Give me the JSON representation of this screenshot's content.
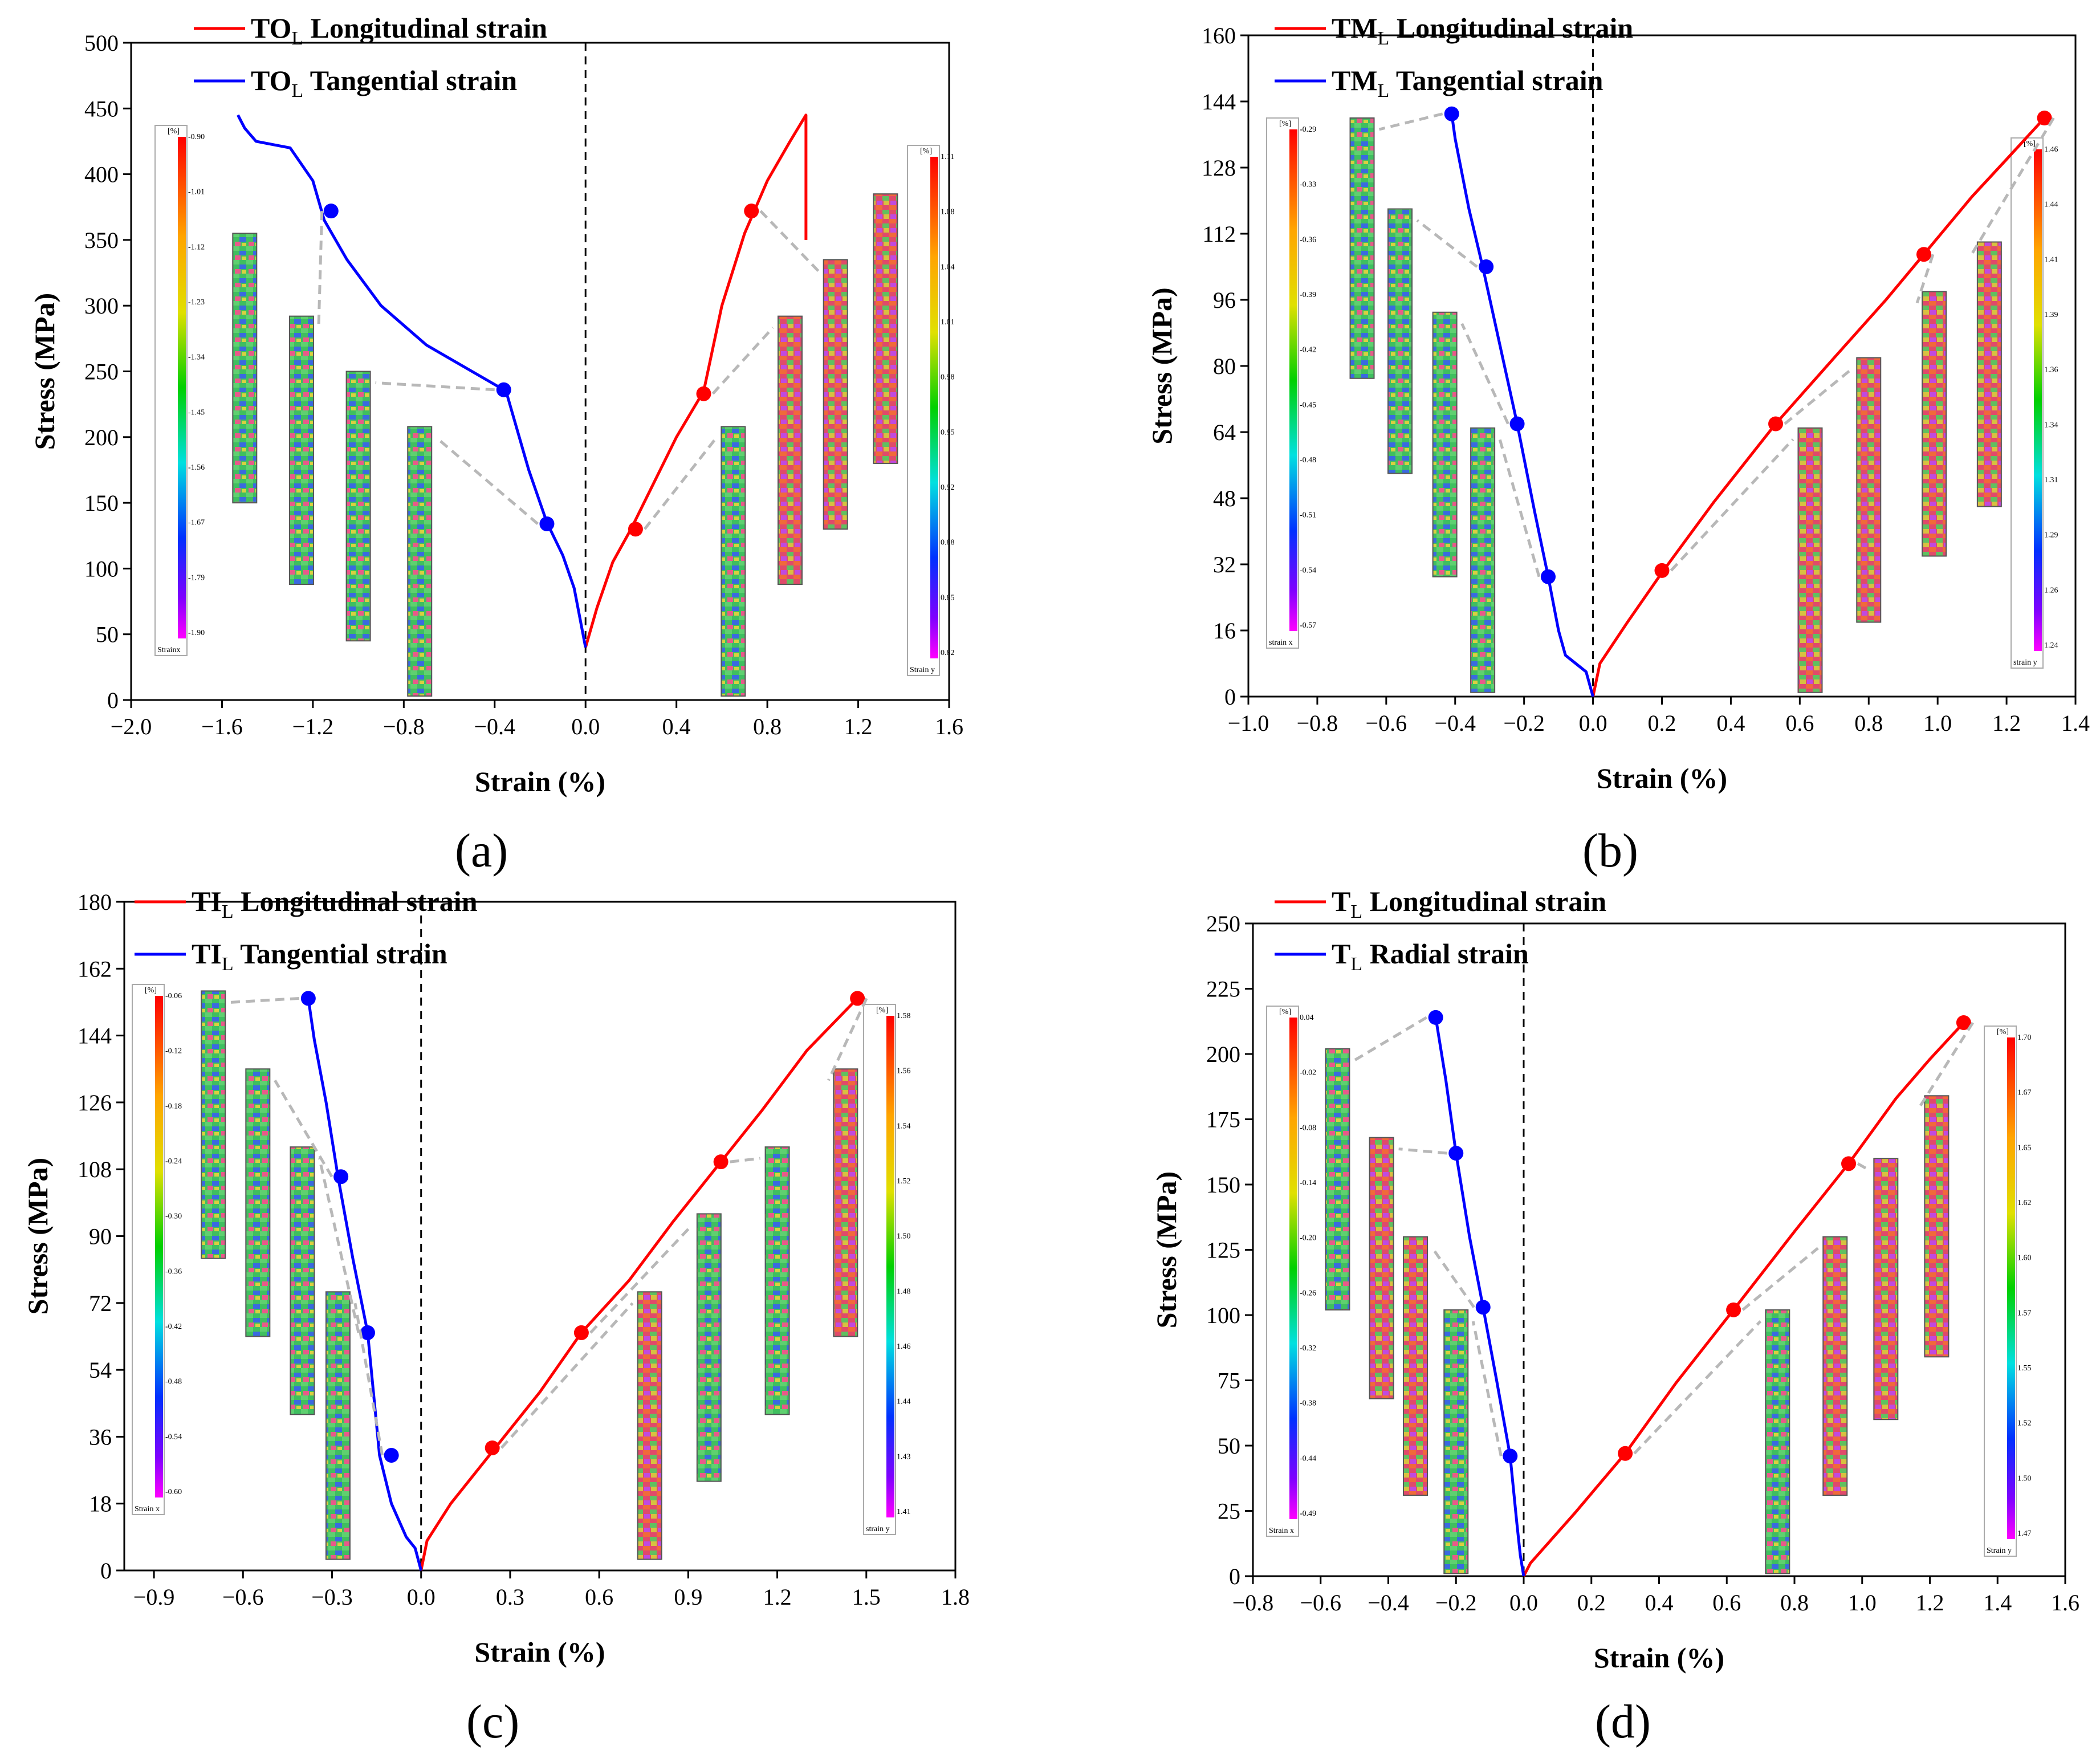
{
  "figure": {
    "panel_labels": [
      "(a)",
      "(b)",
      "(c)",
      "(d)"
    ]
  },
  "colors": {
    "longitudinal": "#ff0000",
    "transverse": "#0000ff",
    "arrow": "#b8b8b8"
  },
  "chart_data": [
    {
      "type": "line",
      "panel": "(a)",
      "xlabel": "Strain (%)",
      "ylabel": "Stress (MPa)",
      "xlim": [
        -2.0,
        1.6
      ],
      "ylim": [
        0,
        500
      ],
      "xticks": [
        -2.0,
        -1.6,
        -1.2,
        -0.8,
        -0.4,
        0.0,
        0.4,
        0.8,
        1.2,
        1.6
      ],
      "xtick_labels": [
        "−2.0",
        "−1.6",
        "−1.2",
        "−0.8",
        "−0.4",
        "0.0",
        "0.4",
        "0.8",
        "1.2",
        "1.6"
      ],
      "yticks": [
        0,
        50,
        100,
        150,
        200,
        250,
        300,
        350,
        400,
        450,
        500
      ],
      "ytick_labels": [
        "0",
        "50",
        "100",
        "150",
        "200",
        "250",
        "300",
        "350",
        "400",
        "450",
        "500"
      ],
      "legend": [
        {
          "prefix": "TO",
          "sub": "L",
          "text": "Longitudinal strain",
          "color": "#ff0000"
        },
        {
          "prefix": "TO",
          "sub": "L",
          "text": "Tangential strain",
          "color": "#0000ff"
        }
      ],
      "series": [
        {
          "name": "Longitudinal strain",
          "color": "#ff0000",
          "x": [
            0,
            0.05,
            0.12,
            0.2,
            0.3,
            0.4,
            0.52,
            0.6,
            0.7,
            0.8,
            0.9,
            0.97,
            0.97
          ],
          "y": [
            40,
            70,
            105,
            130,
            165,
            200,
            235,
            300,
            355,
            395,
            425,
            445,
            350
          ]
        },
        {
          "name": "Tangential strain",
          "color": "#0000ff",
          "x": [
            0,
            -0.05,
            -0.1,
            -0.17,
            -0.25,
            -0.35,
            -0.5,
            -0.7,
            -0.9,
            -1.05,
            -1.15,
            -1.2,
            -1.3,
            -1.45,
            -1.5,
            -1.53
          ],
          "y": [
            40,
            85,
            110,
            135,
            175,
            235,
            250,
            270,
            300,
            335,
            365,
            395,
            420,
            425,
            435,
            445
          ]
        }
      ],
      "markers": {
        "longitudinal": [
          {
            "x": 0.22,
            "y": 130
          },
          {
            "x": 0.52,
            "y": 233
          },
          {
            "x": 0.73,
            "y": 372
          }
        ],
        "tangential": [
          {
            "x": -0.17,
            "y": 134
          },
          {
            "x": -0.36,
            "y": 236
          },
          {
            "x": -1.12,
            "y": 372
          }
        ]
      },
      "colorbars": [
        {
          "unit": "[%]",
          "caption": "Strainx",
          "ticks": [
            "-0.90",
            "-1.01",
            "-1.12",
            "-1.23",
            "-1.34",
            "-1.45",
            "-1.56",
            "-1.67",
            "-1.79",
            "-1.90"
          ]
        },
        {
          "unit": "[%]",
          "caption": "Strain y",
          "ticks": [
            "1.11",
            "1.08",
            "1.04",
            "1.01",
            "0.98",
            "0.95",
            "0.92",
            "0.88",
            "0.85",
            "0.82"
          ]
        }
      ]
    },
    {
      "type": "line",
      "panel": "(b)",
      "xlabel": "Strain (%)",
      "ylabel": "Stress (MPa)",
      "xlim": [
        -1.0,
        1.4
      ],
      "ylim": [
        0,
        160
      ],
      "xticks": [
        -1.0,
        -0.8,
        -0.6,
        -0.4,
        -0.2,
        0.0,
        0.2,
        0.4,
        0.6,
        0.8,
        1.0,
        1.2,
        1.4
      ],
      "xtick_labels": [
        "−1.0",
        "−0.8",
        "−0.6",
        "−0.4",
        "−0.2",
        "0.0",
        "0.2",
        "0.4",
        "0.6",
        "0.8",
        "1.0",
        "1.2",
        "1.4"
      ],
      "yticks": [
        0,
        16,
        32,
        48,
        64,
        80,
        96,
        112,
        128,
        144,
        160
      ],
      "ytick_labels": [
        "0",
        "16",
        "32",
        "48",
        "64",
        "80",
        "96",
        "112",
        "128",
        "144",
        "160"
      ],
      "legend": [
        {
          "prefix": "TM",
          "sub": "L",
          "text": "Longitudinal strain",
          "color": "#ff0000"
        },
        {
          "prefix": "TM",
          "sub": "L",
          "text": "Tangential strain",
          "color": "#0000ff"
        }
      ],
      "series": [
        {
          "name": "Longitudinal strain",
          "color": "#ff0000",
          "x": [
            0.0,
            0.02,
            0.1,
            0.2,
            0.35,
            0.53,
            0.7,
            0.85,
            0.97,
            1.1,
            1.2,
            1.31
          ],
          "y": [
            0,
            8,
            18,
            30,
            47,
            66,
            82,
            96,
            108,
            121,
            130,
            140
          ]
        },
        {
          "name": "Tangential strain",
          "color": "#0000ff",
          "x": [
            0.0,
            -0.02,
            -0.05,
            -0.08,
            -0.1,
            -0.13,
            -0.17,
            -0.22,
            -0.27,
            -0.32,
            -0.36,
            -0.4,
            -0.41
          ],
          "y": [
            0,
            6,
            8,
            10,
            16,
            29,
            45,
            66,
            85,
            104,
            118,
            135,
            141
          ]
        }
      ],
      "markers": {
        "longitudinal": [
          {
            "x": 0.2,
            "y": 30.5
          },
          {
            "x": 0.53,
            "y": 66
          },
          {
            "x": 0.96,
            "y": 107
          },
          {
            "x": 1.31,
            "y": 140
          }
        ],
        "tangential": [
          {
            "x": -0.13,
            "y": 29
          },
          {
            "x": -0.22,
            "y": 66
          },
          {
            "x": -0.31,
            "y": 104
          },
          {
            "x": -0.41,
            "y": 141
          }
        ]
      },
      "colorbars": [
        {
          "unit": "[%]",
          "caption": "strain x",
          "ticks": [
            "-0.29",
            "-0.33",
            "-0.36",
            "-0.39",
            "-0.42",
            "-0.45",
            "-0.48",
            "-0.51",
            "-0.54",
            "-0.57"
          ]
        },
        {
          "unit": "[%]",
          "caption": "strain y",
          "ticks": [
            "1.46",
            "1.44",
            "1.41",
            "1.39",
            "1.36",
            "1.34",
            "1.31",
            "1.29",
            "1.26",
            "1.24"
          ]
        }
      ]
    },
    {
      "type": "line",
      "panel": "(c)",
      "xlabel": "Strain (%)",
      "ylabel": "Stress (MPa)",
      "xlim": [
        -1.0,
        1.8
      ],
      "ylim": [
        0,
        180
      ],
      "xticks": [
        -0.9,
        -0.6,
        -0.3,
        0.0,
        0.3,
        0.6,
        0.9,
        1.2,
        1.5,
        1.8
      ],
      "xtick_labels": [
        "−0.9",
        "−0.6",
        "−0.3",
        "0.0",
        "0.3",
        "0.6",
        "0.9",
        "1.2",
        "1.5",
        "1.8"
      ],
      "yticks": [
        0,
        18,
        36,
        54,
        72,
        90,
        108,
        126,
        144,
        162,
        180
      ],
      "ytick_labels": [
        "0",
        "18",
        "36",
        "54",
        "72",
        "90",
        "108",
        "126",
        "144",
        "162",
        "180"
      ],
      "legend": [
        {
          "prefix": "TI",
          "sub": "L",
          "text": "Longitudinal strain",
          "color": "#ff0000"
        },
        {
          "prefix": "TI",
          "sub": "L",
          "text": "Tangential strain",
          "color": "#0000ff"
        }
      ],
      "series": [
        {
          "name": "Longitudinal strain",
          "color": "#ff0000",
          "x": [
            0.0,
            0.02,
            0.1,
            0.25,
            0.4,
            0.54,
            0.7,
            0.85,
            1.01,
            1.15,
            1.3,
            1.47
          ],
          "y": [
            0,
            8,
            18,
            33,
            48,
            64,
            78,
            94,
            110,
            124,
            140,
            154
          ]
        },
        {
          "name": "Tangential strain",
          "color": "#0000ff",
          "x": [
            0.0,
            -0.02,
            -0.05,
            -0.1,
            -0.14,
            -0.18,
            -0.23,
            -0.28,
            -0.32,
            -0.36,
            -0.38
          ],
          "y": [
            0,
            6,
            9,
            18,
            31,
            64,
            84,
            106,
            126,
            143,
            154
          ]
        }
      ],
      "markers": {
        "longitudinal": [
          {
            "x": 0.24,
            "y": 33
          },
          {
            "x": 0.54,
            "y": 64
          },
          {
            "x": 1.01,
            "y": 110
          },
          {
            "x": 1.47,
            "y": 154
          }
        ],
        "tangential": [
          {
            "x": -0.1,
            "y": 31
          },
          {
            "x": -0.18,
            "y": 64
          },
          {
            "x": -0.27,
            "y": 106
          },
          {
            "x": -0.38,
            "y": 154
          }
        ]
      },
      "colorbars": [
        {
          "unit": "[%]",
          "caption": "Strain x",
          "ticks": [
            "-0.06",
            "-0.12",
            "-0.18",
            "-0.24",
            "-0.30",
            "-0.36",
            "-0.42",
            "-0.48",
            "-0.54",
            "-0.60"
          ]
        },
        {
          "unit": "[%]",
          "caption": "strain y",
          "ticks": [
            "1.58",
            "1.56",
            "1.54",
            "1.52",
            "1.50",
            "1.48",
            "1.46",
            "1.44",
            "1.43",
            "1.41"
          ]
        }
      ]
    },
    {
      "type": "line",
      "panel": "(d)",
      "xlabel": "Strain (%)",
      "ylabel": "Stress (MPa)",
      "xlim": [
        -0.8,
        1.6
      ],
      "ylim": [
        0,
        250
      ],
      "xticks": [
        -0.8,
        -0.6,
        -0.4,
        -0.2,
        0.0,
        0.2,
        0.4,
        0.6,
        0.8,
        1.0,
        1.2,
        1.4,
        1.6
      ],
      "xtick_labels": [
        "−0.8",
        "−0.6",
        "−0.4",
        "−0.2",
        "0.0",
        "0.2",
        "0.4",
        "0.6",
        "0.8",
        "1.0",
        "1.2",
        "1.4",
        "1.6"
      ],
      "yticks": [
        0,
        25,
        50,
        75,
        100,
        125,
        150,
        175,
        200,
        225,
        250
      ],
      "ytick_labels": [
        "0",
        "25",
        "50",
        "75",
        "100",
        "125",
        "150",
        "175",
        "200",
        "225",
        "250"
      ],
      "legend": [
        {
          "prefix": "T",
          "sub": "L",
          "text": "Longitudinal strain",
          "color": "#ff0000"
        },
        {
          "prefix": "T",
          "sub": "L",
          "text": "Radial strain",
          "color": "#0000ff"
        }
      ],
      "series": [
        {
          "name": "Longitudinal strain",
          "color": "#ff0000",
          "x": [
            0.0,
            0.02,
            0.15,
            0.3,
            0.45,
            0.62,
            0.8,
            0.96,
            1.1,
            1.2,
            1.3
          ],
          "y": [
            0,
            5,
            24,
            47,
            74,
            102,
            132,
            158,
            183,
            198,
            212
          ]
        },
        {
          "name": "Radial strain",
          "color": "#0000ff",
          "x": [
            0.0,
            -0.01,
            -0.02,
            -0.04,
            -0.08,
            -0.12,
            -0.16,
            -0.2,
            -0.23,
            -0.26
          ],
          "y": [
            0,
            8,
            20,
            46,
            75,
            103,
            130,
            162,
            190,
            214
          ]
        }
      ],
      "markers": {
        "longitudinal": [
          {
            "x": 0.3,
            "y": 47
          },
          {
            "x": 0.62,
            "y": 102
          },
          {
            "x": 0.96,
            "y": 158
          },
          {
            "x": 1.3,
            "y": 212
          }
        ],
        "tangential": [
          {
            "x": -0.04,
            "y": 46
          },
          {
            "x": -0.12,
            "y": 103
          },
          {
            "x": -0.2,
            "y": 162
          },
          {
            "x": -0.26,
            "y": 214
          }
        ]
      },
      "colorbars": [
        {
          "unit": "[%]",
          "caption": "Strain x",
          "ticks": [
            "0.04",
            "-0.02",
            "-0.08",
            "-0.14",
            "-0.20",
            "-0.26",
            "-0.32",
            "-0.38",
            "-0.44",
            "-0.49"
          ]
        },
        {
          "unit": "[%]",
          "caption": "Strain y",
          "ticks": [
            "1.70",
            "1.67",
            "1.65",
            "1.62",
            "1.60",
            "1.57",
            "1.55",
            "1.52",
            "1.50",
            "1.47"
          ]
        }
      ]
    }
  ]
}
